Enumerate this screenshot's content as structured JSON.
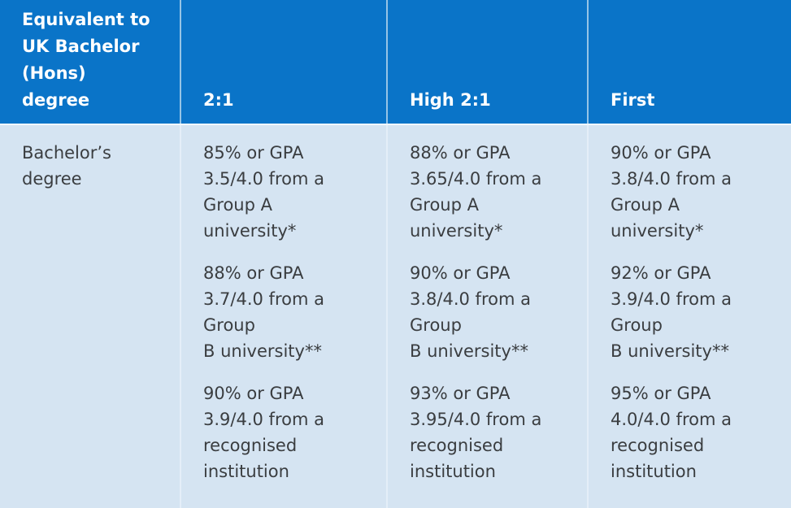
{
  "colors": {
    "page_bg": "#ffffff",
    "header_bg": "#0a74c8",
    "header_text": "#ffffff",
    "header_divider": "#96c4e6",
    "header_body_separator": "#f2f8fc",
    "body_bg": "#d5e4f2",
    "body_divider": "#e4eef8",
    "body_text": "#3a3d40"
  },
  "table": {
    "header": [
      "Equivalent to\nUK Bachelor\n(Hons)\ndegree",
      "2:1",
      "High 2:1",
      "First"
    ],
    "row_label": "Bachelor’s\ndegree",
    "cells": [
      {
        "column": "2:1",
        "paragraphs": [
          "85% or GPA\n3.5/4.0 from a\nGroup A\nuniversity*",
          "88% or GPA\n3.7/4.0 from a\nGroup\nB university**",
          "90% or GPA\n3.9/4.0 from a\nrecognised\ninstitution"
        ]
      },
      {
        "column": "High 2:1",
        "paragraphs": [
          "88% or GPA\n3.65/4.0 from a\nGroup A\nuniversity*",
          "90% or GPA\n3.8/4.0 from a\nGroup\nB university**",
          "93% or GPA\n3.95/4.0 from a\nrecognised\ninstitution"
        ]
      },
      {
        "column": "First",
        "paragraphs": [
          "90% or GPA\n3.8/4.0 from a\nGroup A\nuniversity*",
          "92% or GPA\n3.9/4.0 from a\nGroup\nB university**",
          "95% or GPA\n4.0/4.0 from a\nrecognised\ninstitution"
        ]
      }
    ]
  },
  "chart_data": {
    "type": "table",
    "title": "Equivalent to UK Bachelor (Hons) degree",
    "columns": [
      "Equivalent to UK Bachelor (Hons) degree",
      "2:1",
      "High 2:1",
      "First"
    ],
    "rows": [
      [
        "Bachelor’s degree",
        [
          "85% or GPA 3.5/4.0 from a Group A university*",
          "88% or GPA 3.7/4.0 from a Group B university**",
          "90% or GPA 3.9/4.0 from a recognised institution"
        ],
        [
          "88% or GPA 3.65/4.0 from a Group A university*",
          "90% or GPA 3.8/4.0 from a Group B university**",
          "93% or GPA 3.95/4.0 from a recognised institution"
        ],
        [
          "90% or GPA 3.8/4.0 from a Group A university*",
          "92% or GPA 3.9/4.0 from a Group B university**",
          "95% or GPA 4.0/4.0 from a recognised institution"
        ]
      ]
    ]
  }
}
